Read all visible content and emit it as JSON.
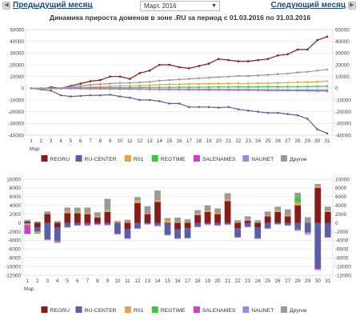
{
  "nav": {
    "prev_label": "Предыдущий месяц",
    "next_label": "Следующий месяц",
    "month_value": "Март. 2016"
  },
  "chart_data": [
    {
      "type": "line",
      "title": "Динамика прироста доменов в зоне .RU за период с 01.03.2016 по 31.03.2016",
      "xlabel": "Мар",
      "ylim": [
        -40000,
        50000
      ],
      "yticks": [
        -40000,
        -30000,
        -20000,
        -10000,
        0,
        10000,
        20000,
        30000,
        40000,
        50000
      ],
      "x": [
        1,
        2,
        3,
        4,
        5,
        6,
        7,
        8,
        9,
        10,
        11,
        12,
        13,
        14,
        15,
        16,
        17,
        18,
        19,
        20,
        21,
        22,
        23,
        24,
        25,
        26,
        27,
        28,
        29,
        30,
        31
      ],
      "series": [
        {
          "name": "REGRU",
          "color": "#8b1a1a",
          "values": [
            0,
            -1000,
            1000,
            0,
            2000,
            4000,
            6000,
            7000,
            10000,
            10000,
            8000,
            13000,
            15000,
            20000,
            20000,
            18000,
            17000,
            19000,
            21000,
            25000,
            24000,
            23000,
            23000,
            24000,
            25000,
            28000,
            29000,
            33000,
            33000,
            41000,
            44000
          ]
        },
        {
          "name": "RU-CENTER",
          "color": "#5a5ea8",
          "values": [
            0,
            -1000,
            -2000,
            -6000,
            -7000,
            -6500,
            -6000,
            -6000,
            -5500,
            -7000,
            -8000,
            -10000,
            -10000,
            -11000,
            -13000,
            -13000,
            -16000,
            -16000,
            -16000,
            -16500,
            -16000,
            -18000,
            -19000,
            -20000,
            -21000,
            -21000,
            -22000,
            -23000,
            -26000,
            -35000,
            -38500
          ]
        },
        {
          "name": "R01",
          "color": "#e8a53a",
          "values": [
            0,
            -300,
            -200,
            -200,
            500,
            700,
            1000,
            1200,
            1600,
            2000,
            2100,
            2200,
            2500,
            3000,
            3300,
            3400,
            3700,
            3700,
            3900,
            4000,
            4100,
            4200,
            4100,
            4300,
            4300,
            4600,
            4800,
            5200,
            5200,
            5600,
            6000
          ]
        },
        {
          "name": "REGTIME",
          "color": "#3cc83c",
          "values": [
            0,
            100,
            100,
            200,
            300,
            300,
            400,
            400,
            500,
            500,
            500,
            600,
            700,
            800,
            800,
            900,
            900,
            900,
            1000,
            1100,
            1100,
            1200,
            1200,
            1200,
            1300,
            1300,
            1400,
            1400,
            1500,
            1600,
            1700
          ]
        },
        {
          "name": "SALENAMES",
          "color": "#d13cc8",
          "values": [
            0,
            -100,
            -200,
            -300,
            -300,
            -400,
            -500,
            -500,
            -600,
            -700,
            -700,
            -800,
            -900,
            -1000,
            -1100,
            -1100,
            -1200,
            -1300,
            -1400,
            -1400,
            -1500,
            -1600,
            -1600,
            -1700,
            -1800,
            -1900,
            -1900,
            -2000,
            -2100,
            -2200,
            -2300
          ]
        },
        {
          "name": "NAUNET",
          "color": "#8f8fe0",
          "values": [
            0,
            -100,
            -100,
            -200,
            -200,
            -300,
            -300,
            -400,
            -400,
            -500,
            -500,
            -600,
            -600,
            -700,
            -700,
            -800,
            -800,
            -900,
            -900,
            -1000,
            -1000,
            -1100,
            -1100,
            -1200,
            -1200,
            -1300,
            -1300,
            -1400,
            -1400,
            -1500,
            -1500
          ]
        },
        {
          "name": "Другие",
          "color": "#9a9a9a",
          "values": [
            0,
            -500,
            0,
            0,
            1000,
            2000,
            3000,
            3500,
            4000,
            4500,
            4500,
            5000,
            5500,
            6500,
            7000,
            7500,
            8000,
            8500,
            9000,
            9500,
            10000,
            10500,
            10500,
            11000,
            11500,
            12000,
            12500,
            13500,
            14000,
            15000,
            16000
          ]
        }
      ]
    },
    {
      "type": "bar",
      "stacked": true,
      "xlabel": "Мар",
      "ylim": [
        -12000,
        10000
      ],
      "yticks": [
        -12000,
        -10000,
        -8000,
        -6000,
        -4000,
        -2000,
        0,
        2000,
        4000,
        6000,
        8000,
        10000
      ],
      "categories": [
        "1",
        "2",
        "3",
        "4",
        "5",
        "6",
        "7",
        "8",
        "9",
        "10",
        "11",
        "12",
        "13",
        "14",
        "15",
        "16",
        "17",
        "18",
        "19",
        "20",
        "21",
        "22",
        "23",
        "24",
        "25",
        "26",
        "27",
        "28",
        "29",
        "30",
        "31"
      ],
      "series": [
        {
          "name": "REGRU",
          "color": "#8b1a1a",
          "values": [
            300,
            -1000,
            2000,
            -1000,
            2200,
            2200,
            2000,
            1200,
            2500,
            0,
            -1500,
            4500,
            2000,
            4800,
            -200,
            -1500,
            -1200,
            1800,
            2500,
            2000,
            5000,
            -1200,
            500,
            -1000,
            1500,
            2500,
            1500,
            4000,
            0,
            8000,
            2500
          ]
        },
        {
          "name": "RU-CENTER",
          "color": "#5a5ea8",
          "values": [
            -200,
            -1000,
            -3800,
            -3200,
            -800,
            -500,
            -400,
            -300,
            -400,
            -2500,
            -2000,
            -1200,
            -200,
            -500,
            -2500,
            -2000,
            -2200,
            -800,
            -300,
            -500,
            -300,
            -2000,
            -800,
            -2500,
            -1200,
            -200,
            -500,
            -1500,
            -2200,
            -10500,
            -3200
          ]
        },
        {
          "name": "R01",
          "color": "#e8a53a",
          "values": [
            -300,
            -300,
            0,
            -200,
            500,
            300,
            300,
            200,
            400,
            100,
            100,
            600,
            200,
            400,
            500,
            200,
            100,
            300,
            200,
            300,
            400,
            100,
            200,
            200,
            100,
            400,
            300,
            700,
            -300,
            400,
            300
          ]
        },
        {
          "name": "REGTIME",
          "color": "#3cc83c",
          "values": [
            0,
            0,
            100,
            0,
            0,
            100,
            0,
            0,
            100,
            0,
            0,
            100,
            0,
            200,
            0,
            0,
            0,
            0,
            100,
            0,
            0,
            0,
            0,
            0,
            100,
            0,
            0,
            1200,
            0,
            0,
            0
          ]
        },
        {
          "name": "SALENAMES",
          "color": "#d13cc8",
          "values": [
            -2000,
            -100,
            -100,
            -100,
            -200,
            -100,
            -200,
            -100,
            -100,
            -100,
            -100,
            -100,
            -100,
            -200,
            -100,
            -100,
            -100,
            -100,
            -100,
            -100,
            -100,
            -100,
            -100,
            -100,
            -100,
            -100,
            -100,
            -200,
            -100,
            -200,
            -100
          ]
        },
        {
          "name": "NAUNET",
          "color": "#8f8fe0",
          "values": [
            -100,
            -100,
            -100,
            -100,
            -100,
            -100,
            -100,
            -100,
            -100,
            -100,
            -100,
            -100,
            -100,
            -100,
            -100,
            -100,
            -100,
            -100,
            -100,
            -100,
            -100,
            -100,
            -100,
            -100,
            -100,
            -100,
            -100,
            -100,
            -100,
            -100,
            -100
          ]
        },
        {
          "name": "Другие",
          "color": "#9a9a9a",
          "values": [
            400,
            300,
            500,
            400,
            800,
            900,
            1200,
            1000,
            2500,
            300,
            600,
            700,
            1600,
            2000,
            600,
            1000,
            700,
            800,
            1200,
            1000,
            1400,
            500,
            800,
            400,
            900,
            800,
            1300,
            1000,
            1300,
            500,
            900
          ]
        }
      ]
    }
  ]
}
